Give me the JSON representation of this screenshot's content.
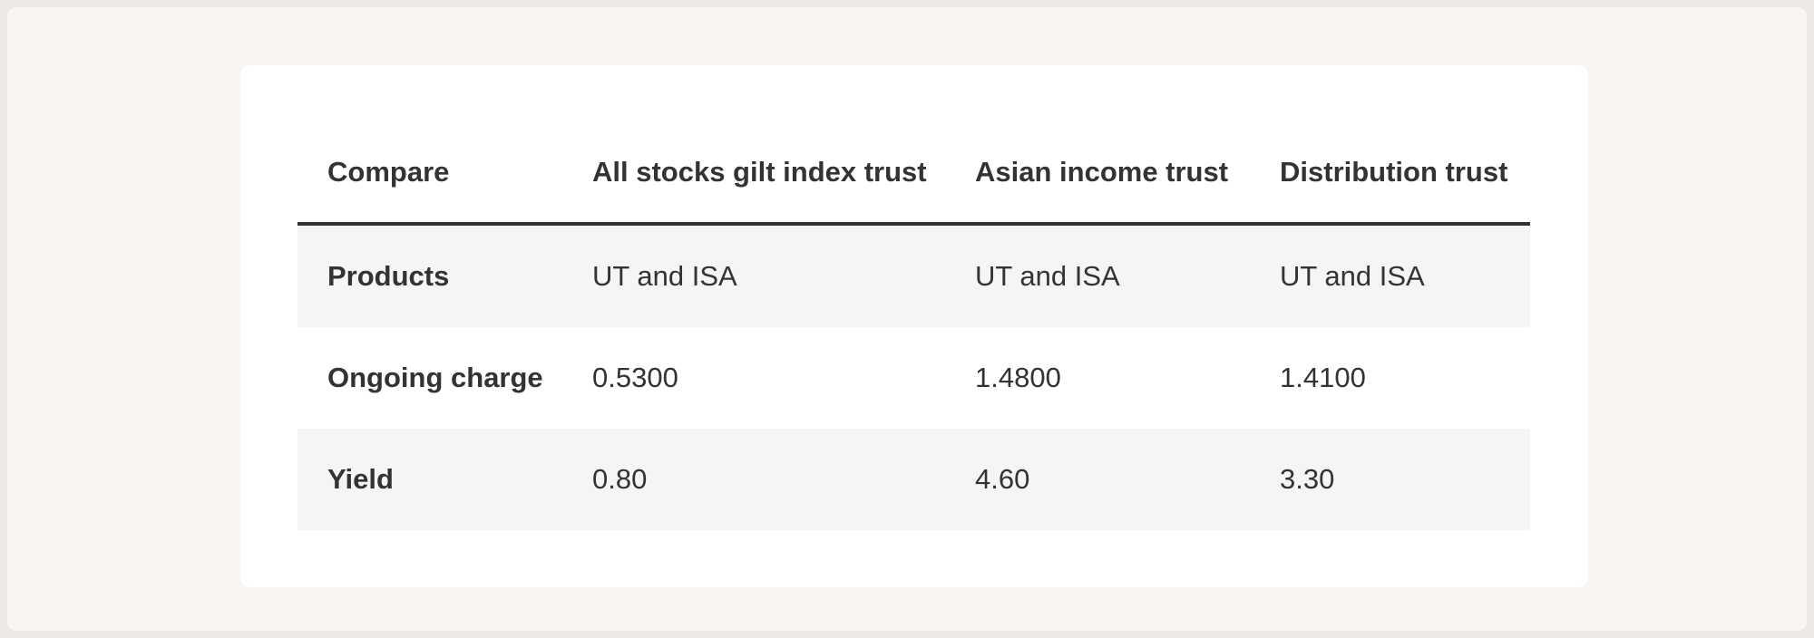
{
  "table": {
    "headers": [
      "Compare",
      "All stocks gilt index trust",
      "Asian income trust",
      "Distribution trust"
    ],
    "rows": [
      {
        "label": "Products",
        "values": [
          "UT and ISA",
          "UT and ISA",
          "UT and ISA"
        ]
      },
      {
        "label": "Ongoing charge",
        "values": [
          "0.5300",
          "1.4800",
          "1.4100"
        ]
      },
      {
        "label": "Yield",
        "values": [
          "0.80",
          "4.60",
          "3.30"
        ]
      }
    ]
  },
  "colors": {
    "page_background": "#f8f5f2",
    "card_background": "#ffffff",
    "text": "#333333",
    "shaded_row": "#f5f5f5",
    "header_rule": "#333333"
  }
}
